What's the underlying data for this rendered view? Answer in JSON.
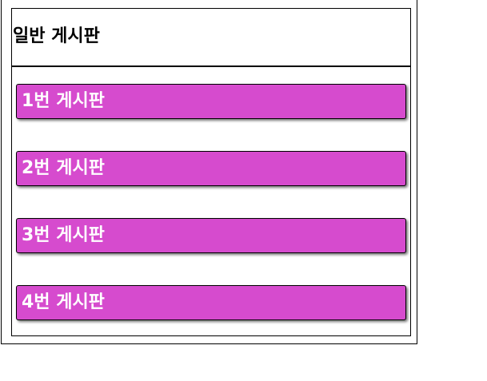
{
  "board": {
    "title": "일반 게시판",
    "items": [
      {
        "label": "1번 게시판"
      },
      {
        "label": "2번 게시판"
      },
      {
        "label": "3번 게시판"
      },
      {
        "label": "4번 게시판"
      }
    ]
  },
  "colors": {
    "button_background": "#d64bce",
    "button_text": "#ffffff",
    "border": "#000000"
  }
}
